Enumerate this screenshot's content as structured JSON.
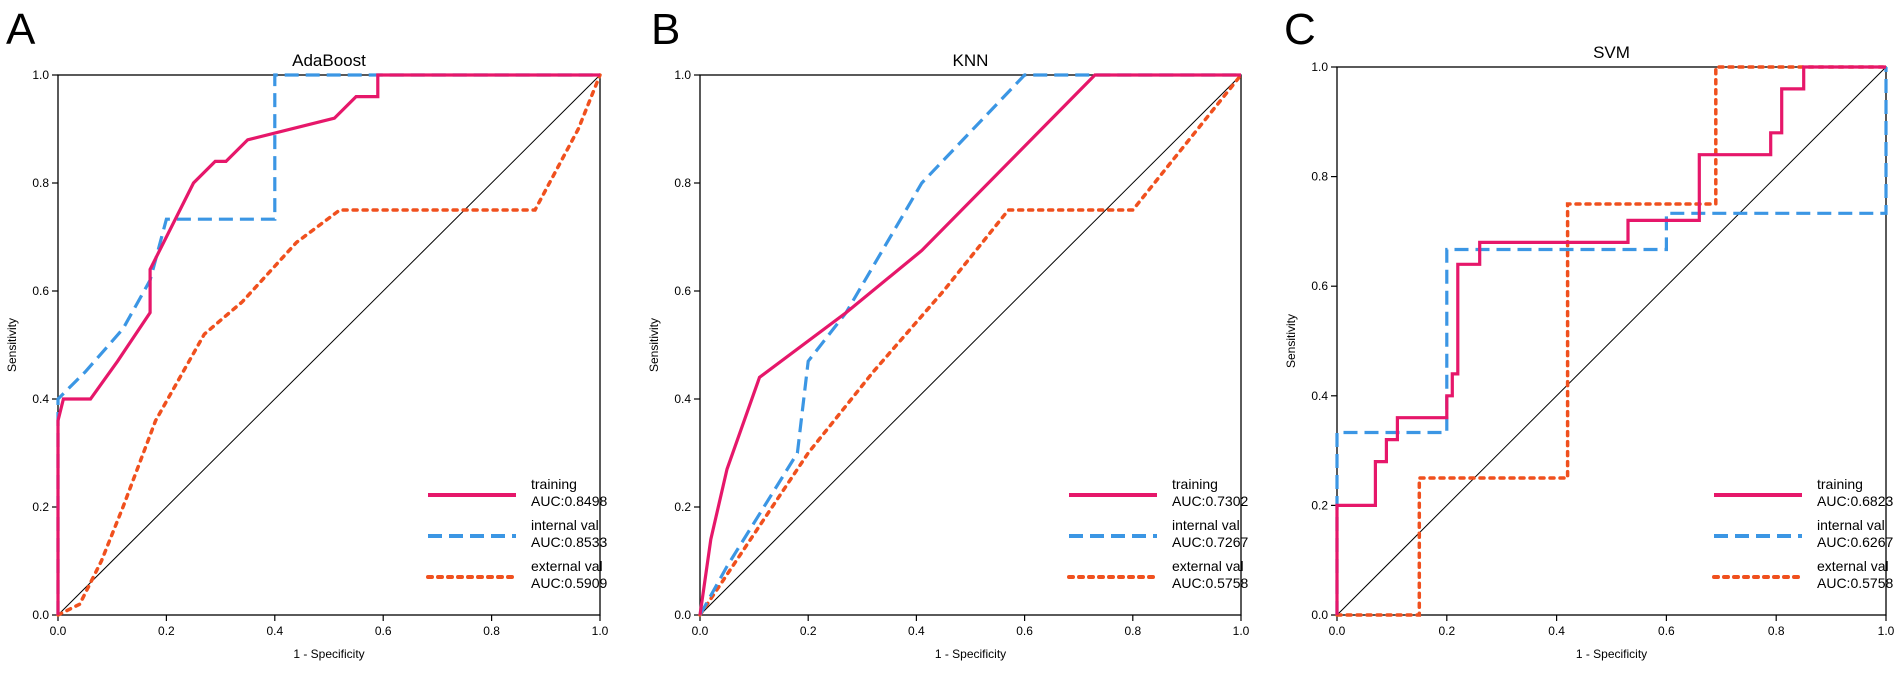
{
  "figure": {
    "panels": [
      "A",
      "B",
      "C"
    ]
  },
  "colors": {
    "training": "#e6176a",
    "internal": "#3b96e4",
    "external": "#f0501e",
    "diagonal": "#000000"
  },
  "chart_data": [
    {
      "type": "line",
      "panel": "A",
      "title": "AdaBoost",
      "xlabel": "1 - Specificity",
      "ylabel": "Sensitivity",
      "xlim": [
        0,
        1
      ],
      "ylim": [
        0,
        1
      ],
      "xticks": [
        "0.0",
        "0.2",
        "0.4",
        "0.6",
        "0.8",
        "1.0"
      ],
      "yticks": [
        "0.0",
        "0.2",
        "0.4",
        "0.6",
        "0.8",
        "1.0"
      ],
      "legend_position": "bottom-right",
      "series": [
        {
          "name": "training",
          "auc": "AUC:0.8498",
          "style": "solid",
          "color_key": "training",
          "points": [
            [
              0,
              0
            ],
            [
              0,
              0.36
            ],
            [
              0.01,
              0.4
            ],
            [
              0.06,
              0.4
            ],
            [
              0.11,
              0.47
            ],
            [
              0.17,
              0.56
            ],
            [
              0.17,
              0.64
            ],
            [
              0.25,
              0.8
            ],
            [
              0.29,
              0.84
            ],
            [
              0.31,
              0.84
            ],
            [
              0.35,
              0.88
            ],
            [
              0.51,
              0.92
            ],
            [
              0.55,
              0.96
            ],
            [
              0.59,
              0.96
            ],
            [
              0.59,
              1.0
            ],
            [
              1,
              1
            ]
          ]
        },
        {
          "name": "internal val",
          "auc": "AUC:0.8533",
          "style": "dashed",
          "color_key": "internal",
          "points": [
            [
              0,
              0
            ],
            [
              0,
              0.4
            ],
            [
              0.05,
              0.45
            ],
            [
              0.12,
              0.53
            ],
            [
              0.17,
              0.62
            ],
            [
              0.2,
              0.733
            ],
            [
              0.4,
              0.733
            ],
            [
              0.4,
              1.0
            ],
            [
              1,
              1
            ]
          ]
        },
        {
          "name": "external val",
          "auc": "AUC:0.5909",
          "style": "dotted",
          "color_key": "external",
          "points": [
            [
              0,
              0
            ],
            [
              0.04,
              0.02
            ],
            [
              0.08,
              0.1
            ],
            [
              0.12,
              0.2
            ],
            [
              0.18,
              0.36
            ],
            [
              0.27,
              0.52
            ],
            [
              0.34,
              0.58
            ],
            [
              0.44,
              0.69
            ],
            [
              0.52,
              0.75
            ],
            [
              0.88,
              0.75
            ],
            [
              0.96,
              0.9
            ],
            [
              1,
              1
            ]
          ]
        }
      ]
    },
    {
      "type": "line",
      "panel": "B",
      "title": "KNN",
      "xlabel": "1 - Specificity",
      "ylabel": "Sensitivity",
      "xlim": [
        0,
        1
      ],
      "ylim": [
        0,
        1
      ],
      "xticks": [
        "0.0",
        "0.2",
        "0.4",
        "0.6",
        "0.8",
        "1.0"
      ],
      "yticks": [
        "0.0",
        "0.2",
        "0.4",
        "0.6",
        "0.8",
        "1.0"
      ],
      "legend_position": "bottom-right",
      "series": [
        {
          "name": "training",
          "auc": "AUC:0.7302",
          "style": "solid",
          "color_key": "training",
          "points": [
            [
              0,
              0
            ],
            [
              0.02,
              0.14
            ],
            [
              0.05,
              0.27
            ],
            [
              0.11,
              0.44
            ],
            [
              0.27,
              0.56
            ],
            [
              0.41,
              0.675
            ],
            [
              0.73,
              1.0
            ],
            [
              1,
              1
            ]
          ]
        },
        {
          "name": "internal val",
          "auc": "AUC:0.7267",
          "style": "dashed",
          "color_key": "internal",
          "points": [
            [
              0,
              0
            ],
            [
              0.05,
              0.09
            ],
            [
              0.18,
              0.3
            ],
            [
              0.2,
              0.47
            ],
            [
              0.27,
              0.56
            ],
            [
              0.41,
              0.8
            ],
            [
              0.6,
              1.0
            ],
            [
              1,
              1
            ]
          ]
        },
        {
          "name": "external val",
          "auc": "AUC:0.5758",
          "style": "dotted",
          "color_key": "external",
          "points": [
            [
              0,
              0
            ],
            [
              0.08,
              0.12
            ],
            [
              0.2,
              0.3
            ],
            [
              0.32,
              0.45
            ],
            [
              0.45,
              0.6
            ],
            [
              0.57,
              0.75
            ],
            [
              0.8,
              0.75
            ],
            [
              1,
              1
            ]
          ]
        }
      ]
    },
    {
      "type": "line",
      "panel": "C",
      "title": "SVM",
      "xlabel": "1 - Specificity",
      "ylabel": "Sensitivity",
      "xlim": [
        0,
        1
      ],
      "ylim": [
        0,
        1
      ],
      "xticks": [
        "0.0",
        "0.2",
        "0.4",
        "0.6",
        "0.8",
        "1.0"
      ],
      "yticks": [
        "0.0",
        "0.2",
        "0.4",
        "0.6",
        "0.8",
        "1.0"
      ],
      "legend_position": "bottom-right",
      "series": [
        {
          "name": "training",
          "auc": "AUC:0.6823",
          "style": "solid",
          "color_key": "training",
          "points": [
            [
              0,
              0
            ],
            [
              0,
              0.2
            ],
            [
              0.07,
              0.2
            ],
            [
              0.07,
              0.28
            ],
            [
              0.09,
              0.28
            ],
            [
              0.09,
              0.32
            ],
            [
              0.11,
              0.32
            ],
            [
              0.11,
              0.36
            ],
            [
              0.2,
              0.36
            ],
            [
              0.2,
              0.4
            ],
            [
              0.21,
              0.4
            ],
            [
              0.21,
              0.44
            ],
            [
              0.22,
              0.44
            ],
            [
              0.22,
              0.64
            ],
            [
              0.26,
              0.64
            ],
            [
              0.26,
              0.68
            ],
            [
              0.53,
              0.68
            ],
            [
              0.53,
              0.72
            ],
            [
              0.66,
              0.72
            ],
            [
              0.66,
              0.84
            ],
            [
              0.79,
              0.84
            ],
            [
              0.79,
              0.88
            ],
            [
              0.81,
              0.88
            ],
            [
              0.81,
              0.96
            ],
            [
              0.85,
              0.96
            ],
            [
              0.85,
              1.0
            ],
            [
              1,
              1
            ]
          ]
        },
        {
          "name": "internal val",
          "auc": "AUC:0.6267",
          "style": "dashed",
          "color_key": "internal",
          "points": [
            [
              0,
              0
            ],
            [
              0,
              0.333
            ],
            [
              0.2,
              0.333
            ],
            [
              0.2,
              0.667
            ],
            [
              0.6,
              0.667
            ],
            [
              0.6,
              0.733
            ],
            [
              1,
              0.733
            ],
            [
              1,
              1
            ]
          ]
        },
        {
          "name": "external val",
          "auc": "AUC:0.5758",
          "style": "dotted",
          "color_key": "external",
          "points": [
            [
              0,
              0
            ],
            [
              0.15,
              0
            ],
            [
              0.15,
              0.25
            ],
            [
              0.42,
              0.25
            ],
            [
              0.42,
              0.75
            ],
            [
              0.69,
              0.75
            ],
            [
              0.69,
              1.0
            ],
            [
              1,
              1
            ]
          ]
        }
      ]
    }
  ]
}
